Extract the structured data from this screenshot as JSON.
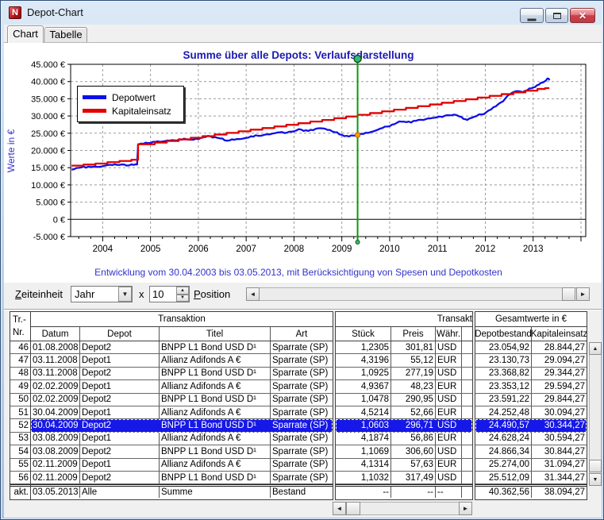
{
  "window": {
    "title": "Depot-Chart"
  },
  "tabs": [
    {
      "label": "Chart",
      "active": true
    },
    {
      "label": "Tabelle",
      "active": false
    }
  ],
  "chart_data": {
    "type": "line",
    "title": "Summe über alle Depots: Verlaufsdarstellung",
    "ylabel": "Werte in €",
    "caption": "Entwicklung vom 30.04.2003 bis 03.05.2013, mit Berücksichtigung von Spesen und Depotkosten",
    "ylim": [
      -5000,
      45000
    ],
    "xlim": [
      2003.33,
      2014.1
    ],
    "y_ticks": [
      "45.000 €",
      "40.000 €",
      "35.000 €",
      "30.000 €",
      "25.000 €",
      "20.000 €",
      "15.000 €",
      "10.000 €",
      "5.000 €",
      "0 €",
      "-5.000 €"
    ],
    "x_ticks": [
      "2004",
      "2005",
      "2006",
      "2007",
      "2008",
      "2009",
      "2010",
      "2011",
      "2012",
      "2013"
    ],
    "grid": "dashed",
    "legend_position": "top-left",
    "cursor": {
      "x": 2009.33,
      "color": "#0a9a0a",
      "marker_value": 24490.57,
      "marker_color": "#ff9900"
    },
    "series": [
      {
        "name": "Depotwert",
        "color": "#0f0fe8",
        "step": false,
        "points": [
          [
            2003.35,
            14400
          ],
          [
            2003.45,
            14900
          ],
          [
            2003.55,
            15050
          ],
          [
            2003.65,
            15000
          ],
          [
            2003.75,
            15200
          ],
          [
            2003.85,
            15350
          ],
          [
            2003.95,
            15300
          ],
          [
            2004.05,
            15600
          ],
          [
            2004.15,
            15850
          ],
          [
            2004.25,
            16000
          ],
          [
            2004.35,
            15800
          ],
          [
            2004.45,
            15900
          ],
          [
            2004.55,
            15650
          ],
          [
            2004.65,
            15800
          ],
          [
            2004.72,
            15950
          ],
          [
            2004.74,
            21700
          ],
          [
            2004.85,
            21950
          ],
          [
            2004.95,
            22150
          ],
          [
            2005.05,
            22500
          ],
          [
            2005.15,
            22650
          ],
          [
            2005.25,
            22600
          ],
          [
            2005.35,
            22900
          ],
          [
            2005.45,
            23000
          ],
          [
            2005.55,
            22850
          ],
          [
            2005.65,
            23100
          ],
          [
            2005.75,
            23250
          ],
          [
            2005.85,
            23150
          ],
          [
            2005.95,
            23400
          ],
          [
            2006.05,
            23600
          ],
          [
            2006.15,
            23900
          ],
          [
            2006.25,
            24100
          ],
          [
            2006.35,
            23850
          ],
          [
            2006.45,
            23500
          ],
          [
            2006.55,
            22950
          ],
          [
            2006.65,
            22900
          ],
          [
            2006.75,
            23100
          ],
          [
            2006.85,
            23300
          ],
          [
            2006.95,
            23500
          ],
          [
            2007.05,
            23750
          ],
          [
            2007.15,
            24000
          ],
          [
            2007.25,
            24250
          ],
          [
            2007.35,
            24400
          ],
          [
            2007.45,
            24700
          ],
          [
            2007.55,
            24900
          ],
          [
            2007.65,
            25200
          ],
          [
            2007.75,
            25350
          ],
          [
            2007.85,
            25150
          ],
          [
            2007.95,
            25450
          ],
          [
            2008.05,
            25800
          ],
          [
            2008.15,
            26050
          ],
          [
            2008.25,
            25850
          ],
          [
            2008.35,
            26000
          ],
          [
            2008.45,
            26250
          ],
          [
            2008.55,
            26450
          ],
          [
            2008.65,
            26300
          ],
          [
            2008.75,
            25950
          ],
          [
            2008.85,
            25300
          ],
          [
            2008.95,
            24650
          ],
          [
            2009.05,
            24150
          ],
          [
            2009.15,
            24050
          ],
          [
            2009.25,
            24300
          ],
          [
            2009.33,
            24490
          ],
          [
            2009.45,
            24800
          ],
          [
            2009.55,
            25100
          ],
          [
            2009.65,
            25500
          ],
          [
            2009.75,
            26000
          ],
          [
            2009.85,
            26500
          ],
          [
            2009.95,
            26950
          ],
          [
            2010.05,
            27500
          ],
          [
            2010.15,
            28000
          ],
          [
            2010.25,
            28350
          ],
          [
            2010.35,
            28200
          ],
          [
            2010.45,
            28100
          ],
          [
            2010.55,
            28600
          ],
          [
            2010.65,
            28900
          ],
          [
            2010.75,
            29050
          ],
          [
            2010.85,
            29300
          ],
          [
            2010.95,
            29500
          ],
          [
            2011.05,
            29850
          ],
          [
            2011.15,
            30050
          ],
          [
            2011.25,
            30200
          ],
          [
            2011.35,
            30400
          ],
          [
            2011.45,
            29900
          ],
          [
            2011.55,
            29100
          ],
          [
            2011.62,
            28850
          ],
          [
            2011.72,
            29500
          ],
          [
            2011.82,
            30000
          ],
          [
            2011.92,
            30450
          ],
          [
            2012.02,
            31100
          ],
          [
            2012.12,
            31900
          ],
          [
            2012.22,
            32800
          ],
          [
            2012.32,
            33900
          ],
          [
            2012.42,
            35100
          ],
          [
            2012.52,
            36300
          ],
          [
            2012.6,
            37000
          ],
          [
            2012.7,
            37200
          ],
          [
            2012.78,
            36900
          ],
          [
            2012.88,
            37500
          ],
          [
            2012.96,
            38000
          ],
          [
            2013.04,
            38400
          ],
          [
            2013.12,
            39100
          ],
          [
            2013.2,
            39700
          ],
          [
            2013.27,
            40300
          ],
          [
            2013.31,
            40900
          ],
          [
            2013.34,
            40363
          ]
        ]
      },
      {
        "name": "Kapitaleinsatz",
        "color": "#e10000",
        "step": true,
        "points": [
          [
            2003.35,
            15600
          ],
          [
            2003.6,
            15900
          ],
          [
            2003.85,
            16200
          ],
          [
            2004.1,
            16600
          ],
          [
            2004.35,
            16950
          ],
          [
            2004.6,
            17300
          ],
          [
            2004.74,
            21800
          ],
          [
            2005.09,
            22270
          ],
          [
            2005.34,
            22740
          ],
          [
            2005.59,
            23210
          ],
          [
            2005.84,
            23680
          ],
          [
            2006.09,
            24150
          ],
          [
            2006.34,
            24620
          ],
          [
            2006.59,
            25090
          ],
          [
            2006.84,
            25560
          ],
          [
            2007.09,
            26030
          ],
          [
            2007.34,
            26500
          ],
          [
            2007.59,
            26970
          ],
          [
            2007.84,
            27440
          ],
          [
            2008.09,
            27910
          ],
          [
            2008.34,
            28380
          ],
          [
            2008.59,
            28844
          ],
          [
            2008.84,
            29344
          ],
          [
            2009.09,
            29844
          ],
          [
            2009.33,
            30344
          ],
          [
            2009.59,
            30844
          ],
          [
            2009.84,
            31344
          ],
          [
            2010.09,
            31844
          ],
          [
            2010.34,
            32344
          ],
          [
            2010.59,
            32844
          ],
          [
            2010.84,
            33344
          ],
          [
            2011.09,
            33844
          ],
          [
            2011.34,
            34344
          ],
          [
            2011.59,
            34844
          ],
          [
            2011.84,
            35344
          ],
          [
            2012.09,
            35844
          ],
          [
            2012.34,
            36344
          ],
          [
            2012.59,
            36844
          ],
          [
            2012.84,
            37344
          ],
          [
            2013.09,
            37844
          ],
          [
            2013.25,
            38094
          ],
          [
            2013.34,
            38094
          ]
        ]
      }
    ]
  },
  "controls": {
    "zeiteinheit_label": "Zeiteinheit",
    "zeiteinheit_value": "Jahr",
    "multiplier_label": "x",
    "multiplier_value": "10",
    "position_label": "Position"
  },
  "table": {
    "corner": {
      "line1": "Tr.-",
      "line2": "Nr."
    },
    "groups": {
      "left": "Transaktion",
      "mid": "Transakt",
      "right": "Gesamtwerte in €"
    },
    "columns": {
      "datum": "Datum",
      "depot": "Depot",
      "titel": "Titel",
      "art": "Art",
      "stueck": "Stück",
      "preis": "Preis",
      "waehrung": "Währ.",
      "depotbestand": "Depotbestand",
      "kapitaleinsatz": "Kapitaleinsatz"
    },
    "rows": [
      {
        "nr": "46",
        "datum": "01.08.2008",
        "depot": "Depot2",
        "titel": "BNPP L1 Bond USD D¹",
        "art": "Sparrate (SP)",
        "stueck": "1,2305",
        "preis": "301,81",
        "waehrung": "USD",
        "depotbestand": "23.054,92",
        "kapitaleinsatz": "28.844,27",
        "selected": false
      },
      {
        "nr": "47",
        "datum": "03.11.2008",
        "depot": "Depot1",
        "titel": "Allianz Adifonds A €",
        "art": "Sparrate (SP)",
        "stueck": "4,3196",
        "preis": "55,12",
        "waehrung": "EUR",
        "depotbestand": "23.130,73",
        "kapitaleinsatz": "29.094,27",
        "selected": false
      },
      {
        "nr": "48",
        "datum": "03.11.2008",
        "depot": "Depot2",
        "titel": "BNPP L1 Bond USD D¹",
        "art": "Sparrate (SP)",
        "stueck": "1,0925",
        "preis": "277,19",
        "waehrung": "USD",
        "depotbestand": "23.368,82",
        "kapitaleinsatz": "29.344,27",
        "selected": false
      },
      {
        "nr": "49",
        "datum": "02.02.2009",
        "depot": "Depot1",
        "titel": "Allianz Adifonds A €",
        "art": "Sparrate (SP)",
        "stueck": "4,9367",
        "preis": "48,23",
        "waehrung": "EUR",
        "depotbestand": "23.353,12",
        "kapitaleinsatz": "29.594,27",
        "selected": false
      },
      {
        "nr": "50",
        "datum": "02.02.2009",
        "depot": "Depot2",
        "titel": "BNPP L1 Bond USD D¹",
        "art": "Sparrate (SP)",
        "stueck": "1,0478",
        "preis": "290,95",
        "waehrung": "USD",
        "depotbestand": "23.591,22",
        "kapitaleinsatz": "29.844,27",
        "selected": false
      },
      {
        "nr": "51",
        "datum": "30.04.2009",
        "depot": "Depot1",
        "titel": "Allianz Adifonds A €",
        "art": "Sparrate (SP)",
        "stueck": "4,5214",
        "preis": "52,66",
        "waehrung": "EUR",
        "depotbestand": "24.252,48",
        "kapitaleinsatz": "30.094,27",
        "selected": false
      },
      {
        "nr": "52",
        "datum": "30.04.2009",
        "depot": "Depot2",
        "titel": "BNPP L1 Bond USD D¹",
        "art": "Sparrate (SP)",
        "stueck": "1,0603",
        "preis": "296,71",
        "waehrung": "USD",
        "depotbestand": "24.490,57",
        "kapitaleinsatz": "30.344,27",
        "selected": true
      },
      {
        "nr": "53",
        "datum": "03.08.2009",
        "depot": "Depot1",
        "titel": "Allianz Adifonds A €",
        "art": "Sparrate (SP)",
        "stueck": "4,1874",
        "preis": "56,86",
        "waehrung": "EUR",
        "depotbestand": "24.628,24",
        "kapitaleinsatz": "30.594,27",
        "selected": false
      },
      {
        "nr": "54",
        "datum": "03.08.2009",
        "depot": "Depot2",
        "titel": "BNPP L1 Bond USD D¹",
        "art": "Sparrate (SP)",
        "stueck": "1,1069",
        "preis": "306,60",
        "waehrung": "USD",
        "depotbestand": "24.866,34",
        "kapitaleinsatz": "30.844,27",
        "selected": false
      },
      {
        "nr": "55",
        "datum": "02.11.2009",
        "depot": "Depot1",
        "titel": "Allianz Adifonds A €",
        "art": "Sparrate (SP)",
        "stueck": "4,1314",
        "preis": "57,63",
        "waehrung": "EUR",
        "depotbestand": "25.274,00",
        "kapitaleinsatz": "31.094,27",
        "selected": false
      },
      {
        "nr": "56",
        "datum": "02.11.2009",
        "depot": "Depot2",
        "titel": "BNPP L1 Bond USD D¹",
        "art": "Sparrate (SP)",
        "stueck": "1,1032",
        "preis": "317,49",
        "waehrung": "USD",
        "depotbestand": "25.512,09",
        "kapitaleinsatz": "31.344,27",
        "selected": false
      }
    ],
    "footer_row": {
      "nr": "akt.",
      "datum": "03.05.2013",
      "depot": "Alle",
      "titel": "Summe",
      "art": "Bestand",
      "stueck": "--",
      "preis": "--",
      "waehrung": "--",
      "depotbestand": "40.362,56",
      "kapitaleinsatz": "38.094,27"
    }
  },
  "colors": {
    "selection": "#1618e8",
    "chart_title": "#1a1ab4",
    "caption": "#3333cc",
    "grid": "#9a9a9a"
  }
}
